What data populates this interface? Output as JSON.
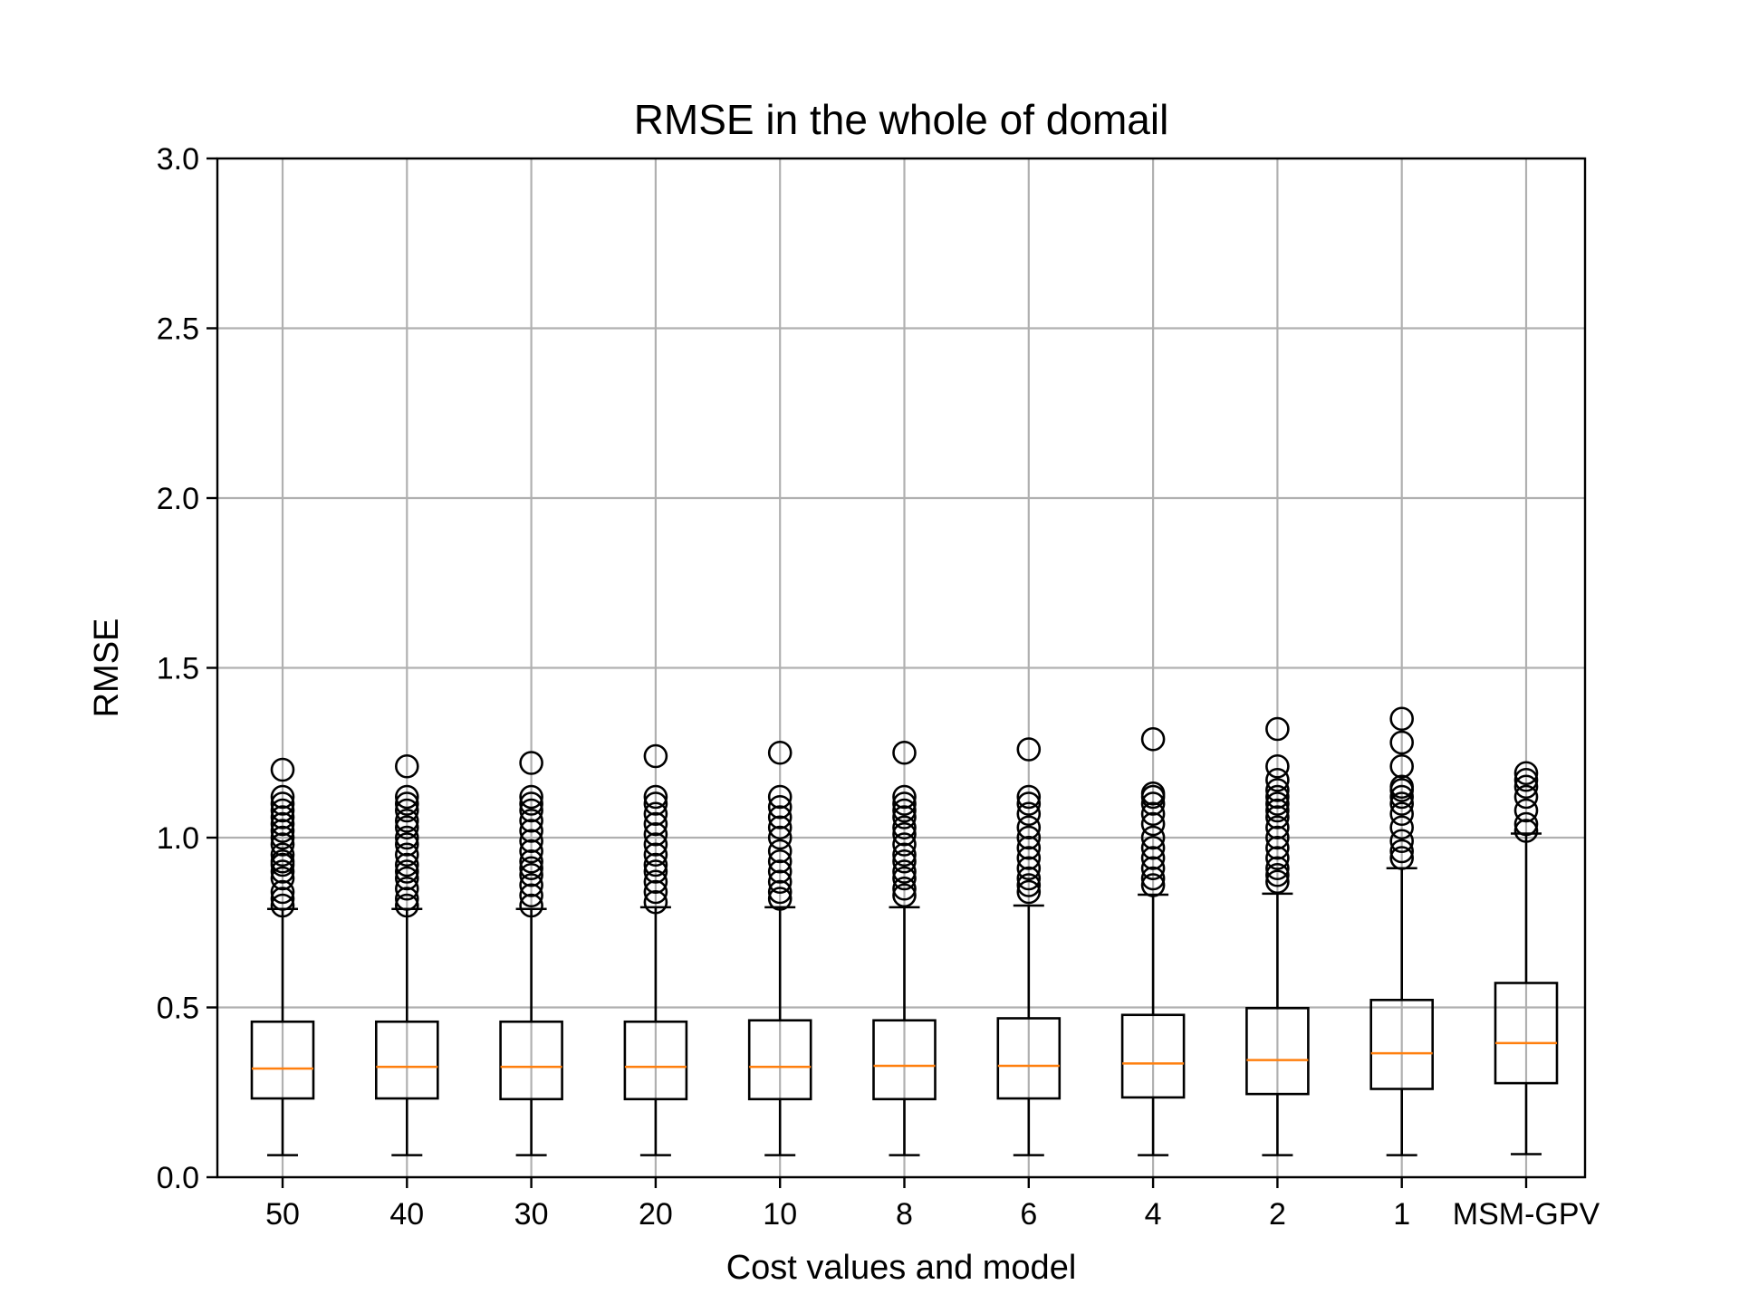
{
  "chart_data": {
    "type": "box",
    "title": "RMSE in the whole of domail",
    "xlabel": "Cost values and model",
    "ylabel": "RMSE",
    "ylim": [
      0.0,
      3.0
    ],
    "yticks": [
      "0.0",
      "0.5",
      "1.0",
      "1.5",
      "2.0",
      "2.5",
      "3.0"
    ],
    "grid": true,
    "median_color": "#ff7f0e",
    "categories": [
      "50",
      "40",
      "30",
      "20",
      "10",
      "8",
      "6",
      "4",
      "2",
      "1",
      "MSM-GPV"
    ],
    "boxes": [
      {
        "whisker_low": 0.065,
        "q1": 0.232,
        "median": 0.32,
        "q3": 0.458,
        "whisker_high": 0.79,
        "fliers": [
          0.8,
          0.82,
          0.84,
          0.88,
          0.9,
          0.92,
          0.93,
          0.95,
          0.98,
          1.0,
          1.02,
          1.04,
          1.06,
          1.08,
          1.1,
          1.12,
          1.2
        ]
      },
      {
        "whisker_low": 0.065,
        "q1": 0.232,
        "median": 0.325,
        "q3": 0.458,
        "whisker_high": 0.79,
        "fliers": [
          0.8,
          0.82,
          0.85,
          0.88,
          0.9,
          0.92,
          0.95,
          0.98,
          1.0,
          1.03,
          1.05,
          1.08,
          1.1,
          1.12,
          1.21
        ]
      },
      {
        "whisker_low": 0.065,
        "q1": 0.23,
        "median": 0.325,
        "q3": 0.458,
        "whisker_high": 0.79,
        "fliers": [
          0.8,
          0.83,
          0.86,
          0.89,
          0.91,
          0.93,
          0.96,
          0.99,
          1.02,
          1.05,
          1.08,
          1.1,
          1.12,
          1.22
        ]
      },
      {
        "whisker_low": 0.065,
        "q1": 0.23,
        "median": 0.325,
        "q3": 0.458,
        "whisker_high": 0.795,
        "fliers": [
          0.81,
          0.84,
          0.87,
          0.9,
          0.92,
          0.95,
          0.98,
          1.01,
          1.04,
          1.07,
          1.1,
          1.12,
          1.24
        ]
      },
      {
        "whisker_low": 0.065,
        "q1": 0.23,
        "median": 0.325,
        "q3": 0.462,
        "whisker_high": 0.795,
        "fliers": [
          0.82,
          0.84,
          0.87,
          0.9,
          0.93,
          0.96,
          1.0,
          1.03,
          1.06,
          1.09,
          1.12,
          1.25
        ]
      },
      {
        "whisker_low": 0.065,
        "q1": 0.23,
        "median": 0.328,
        "q3": 0.462,
        "whisker_high": 0.795,
        "fliers": [
          0.83,
          0.85,
          0.88,
          0.9,
          0.93,
          0.95,
          0.98,
          1.01,
          1.03,
          1.06,
          1.08,
          1.1,
          1.12,
          1.25
        ]
      },
      {
        "whisker_low": 0.065,
        "q1": 0.232,
        "median": 0.328,
        "q3": 0.468,
        "whisker_high": 0.8,
        "fliers": [
          0.84,
          0.86,
          0.88,
          0.91,
          0.94,
          0.97,
          1.0,
          1.03,
          1.07,
          1.1,
          1.12,
          1.26
        ]
      },
      {
        "whisker_low": 0.065,
        "q1": 0.235,
        "median": 0.335,
        "q3": 0.478,
        "whisker_high": 0.832,
        "fliers": [
          0.86,
          0.88,
          0.91,
          0.94,
          0.97,
          1.0,
          1.04,
          1.07,
          1.1,
          1.12,
          1.13,
          1.29
        ]
      },
      {
        "whisker_low": 0.065,
        "q1": 0.245,
        "median": 0.345,
        "q3": 0.498,
        "whisker_high": 0.835,
        "fliers": [
          0.87,
          0.89,
          0.91,
          0.94,
          0.97,
          1.0,
          1.03,
          1.06,
          1.08,
          1.1,
          1.12,
          1.14,
          1.17,
          1.21,
          1.32
        ]
      },
      {
        "whisker_low": 0.065,
        "q1": 0.26,
        "median": 0.365,
        "q3": 0.522,
        "whisker_high": 0.91,
        "fliers": [
          0.94,
          0.96,
          0.99,
          1.03,
          1.07,
          1.1,
          1.12,
          1.14,
          1.15,
          1.21,
          1.28,
          1.35
        ]
      },
      {
        "whisker_low": 0.068,
        "q1": 0.277,
        "median": 0.395,
        "q3": 0.572,
        "whisker_high": 1.012,
        "fliers": [
          1.02,
          1.04,
          1.08,
          1.12,
          1.15,
          1.17,
          1.19
        ]
      }
    ]
  }
}
